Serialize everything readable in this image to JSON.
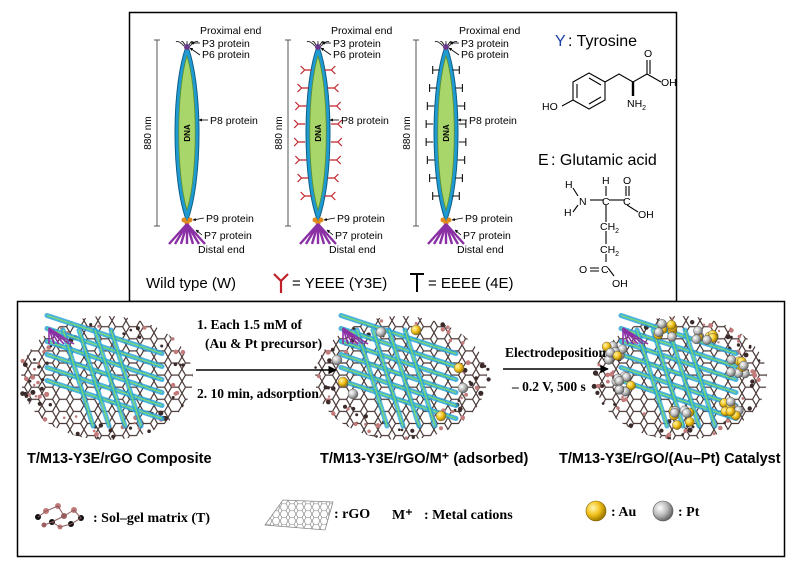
{
  "top_panel": {
    "phages": [
      {
        "proximal": "Proximal end",
        "p3": "P3 protein",
        "p6": "P6 protein",
        "p8": "P8 protein",
        "p9": "P9 protein",
        "p7": "P7 protein",
        "distal": "Distal end",
        "length": "880 nm",
        "dna": "DNA"
      },
      {
        "proximal": "Proximal end",
        "p3": "P3 protein",
        "p6": "P6 protein",
        "p8": "P8 protein",
        "p9": "P9 protein",
        "p7": "P7 protein",
        "distal": "Distal end",
        "length": "880 nm",
        "dna": "DNA"
      },
      {
        "proximal": "Proximal end",
        "p3": "P3 protein",
        "p6": "P6 protein",
        "p8": "P8 protein",
        "p9": "P9 protein",
        "p7": "P7 protein",
        "distal": "Distal end",
        "length": "880 nm",
        "dna": "DNA"
      }
    ],
    "legend": {
      "wild": "Wild type (W)",
      "y3e": "= YEEE (Y3E)",
      "e4": "= EEEE (4E)"
    },
    "molecules": {
      "tyr_symbol": "Y",
      "tyr_name": ": Tyrosine",
      "glu_symbol": "E",
      "glu_name": ": Glutamic acid",
      "atoms": {
        "HO": "HO",
        "OH": "OH",
        "O": "O",
        "NH2": "NH",
        "sub2": "2",
        "H": "H",
        "N": "N",
        "C": "C",
        "CH2": "CH",
        "O2": "O"
      }
    },
    "colors": {
      "sheath": "#1f9bd2",
      "dna": "#a9d66a",
      "y3e_tick": "#c0202a",
      "p7": "#8b2fa5",
      "p9": "#e08a1e"
    }
  },
  "bottom_panel": {
    "step1": {
      "line1": "1. Each 1.5 mM of",
      "line2": "(Au & Pt precursor)",
      "line3": "2. 10 min, adsorption"
    },
    "step2": {
      "line1": "Electrodeposition",
      "line2": "– 0.2 V, 500 s"
    },
    "stages": [
      {
        "caption": "T/M13-Y3E/rGO Composite"
      },
      {
        "caption": "T/M13-Y3E/rGO/M⁺ (adsorbed)"
      },
      {
        "caption": "T/M13-Y3E/rGO/(Au–Pt) Catalyst"
      }
    ],
    "legend": {
      "solgel": ": Sol–gel matrix (T)",
      "rgo": ": rGO",
      "mplus": "M⁺",
      "metal": ": Metal cations",
      "au": ": Au",
      "pt": ": Pt"
    },
    "colors": {
      "au": "#f2c21b",
      "pt": "#b8b8b8",
      "rgo_edge": "#5a3d3a",
      "m13": "#2aa6d8"
    }
  }
}
